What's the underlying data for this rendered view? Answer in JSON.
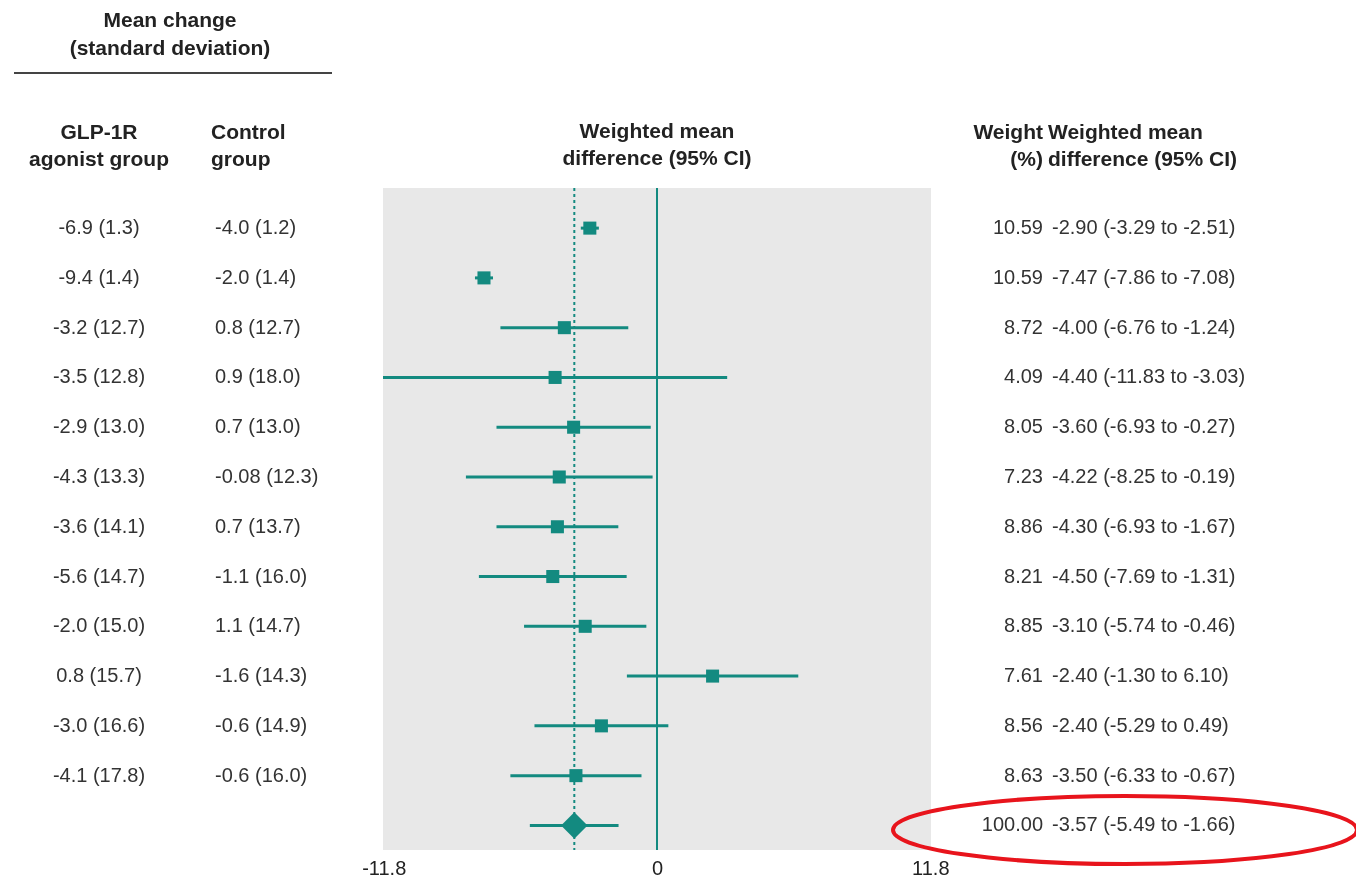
{
  "chart_data": {
    "type": "scatter",
    "xlabel": "Weighted mean\ndifference (95% CI)",
    "categories": [
      null,
      null,
      null,
      null,
      null,
      null,
      null,
      null,
      null,
      null,
      null,
      null,
      null
    ],
    "series": [
      {
        "color": "#138a80",
        "marker": "square",
        "values": [
          -2.9,
          -7.47,
          -4.0,
          -4.4,
          -3.6,
          -4.22,
          -4.3,
          -4.5,
          -3.1,
          2.4,
          -2.4,
          -3.5,
          null
        ],
        "errors": [
          [
            -3.29,
            -2.51
          ],
          [
            -7.86,
            -7.08
          ],
          [
            -6.76,
            -1.24
          ],
          [
            -11.83,
            3.03
          ],
          [
            -6.93,
            -0.27
          ],
          [
            -8.25,
            -0.19
          ],
          [
            -6.93,
            -1.67
          ],
          [
            -7.69,
            -1.31
          ],
          [
            -5.74,
            -0.46
          ],
          [
            -1.3,
            6.1
          ],
          [
            -5.29,
            0.49
          ],
          [
            -6.33,
            -0.67
          ],
          null
        ]
      },
      {
        "color": "#138a80",
        "marker": "diamond",
        "values": [
          null,
          null,
          null,
          null,
          null,
          null,
          null,
          null,
          null,
          null,
          null,
          null,
          -3.57
        ],
        "errors": [
          null,
          null,
          null,
          null,
          null,
          null,
          null,
          null,
          null,
          null,
          null,
          null,
          [
            -5.49,
            -1.66
          ]
        ]
      }
    ],
    "value_labels": [
      "-2.90 (-3.29 to -2.51)",
      "-7.47 (-7.86 to -7.08)",
      "-4.00 (-6.76 to -1.24)",
      "-4.40 (-11.83 to -3.03)",
      "-3.60 (-6.93 to -0.27)",
      "-4.22 (-8.25 to -0.19)",
      "-4.30 (-6.93 to -1.67)",
      "-4.50 (-7.69 to -1.31)",
      "-3.10 (-5.74 to -0.46)",
      "-2.40 (-1.30 to 6.10)",
      "-2.40 (-5.29 to 0.49)",
      "-3.50 (-6.33 to -0.67)",
      "-3.57 (-5.49 to -1.66)"
    ],
    "annotations": [
      "Mean change\n(standard deviation)",
      "GLP-1R\nagonist group",
      "Control\ngroup",
      "Weight\n(%)",
      "Weighted mean\ndifference (95% CI)",
      "-6.9 (1.3)",
      "-9.4 (1.4)",
      "-3.2 (12.7)",
      "-3.5 (12.8)",
      "-2.9 (13.0)",
      "-4.3 (13.3)",
      "-3.6 (14.1)",
      "-5.6 (14.7)",
      "-2.0 (15.0)",
      "0.8 (15.7)",
      "-3.0 (16.6)",
      "-4.1 (17.8)",
      "-4.0 (1.2)",
      "-2.0 (1.4)",
      "0.8 (12.7)",
      "0.9 (18.0)",
      "0.7 (13.0)",
      "-0.08 (12.3)",
      "0.7 (13.7)",
      "-1.1 (16.0)",
      "1.1 (14.7)",
      "-1.6 (14.3)",
      "-0.6 (14.9)",
      "-0.6 (16.0)",
      "10.59",
      "10.59",
      "8.72",
      "4.09",
      "8.05",
      "7.23",
      "8.86",
      "8.21",
      "8.85",
      "7.61",
      "8.56",
      "8.63",
      "100.00"
    ],
    "ref_lines": [
      {
        "axis": "x",
        "value": 0,
        "color": "#138a80",
        "line_style": "solid"
      },
      {
        "axis": "x",
        "value": -3.57,
        "color": "#138a80",
        "line_style": "dotted"
      }
    ],
    "xlim": [
      -11.83,
      11.83
    ],
    "xticks": [
      -11.8,
      0,
      11.8
    ],
    "grid": false,
    "legend": false,
    "orientation": "horizontal"
  }
}
